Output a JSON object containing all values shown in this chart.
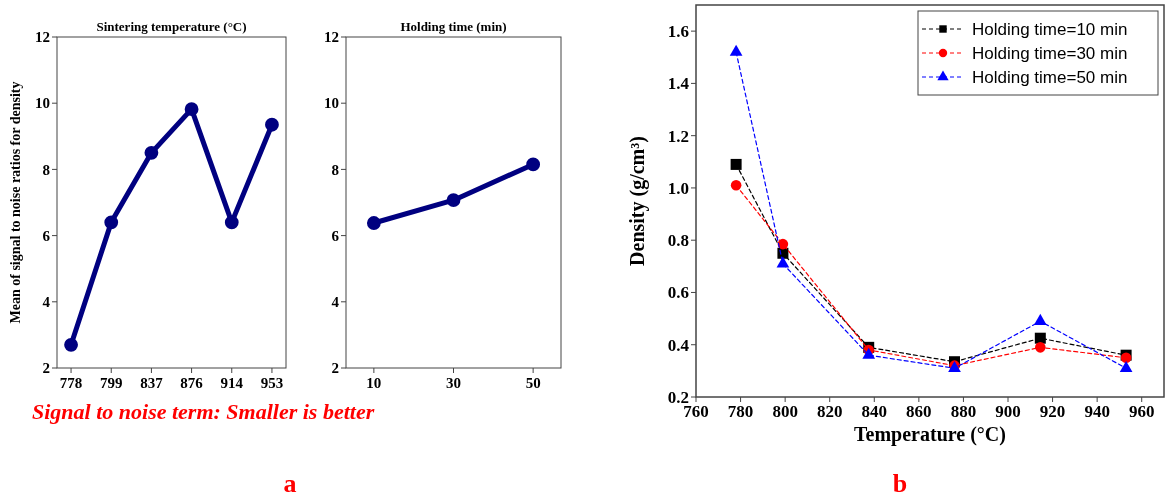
{
  "chart_data": [
    {
      "type": "line",
      "title": "Sintering temperature (°C)",
      "ylabel": "Mean of signal to noise ratios for density",
      "categories": [
        "778",
        "799",
        "837",
        "876",
        "914",
        "953"
      ],
      "series": [
        {
          "color": "#000080",
          "values": [
            2.7,
            6.4,
            8.5,
            9.82,
            6.4,
            9.35
          ]
        }
      ],
      "marker": "circle",
      "ylim": [
        2,
        12
      ],
      "yticks": [
        2,
        4,
        6,
        8,
        10,
        12
      ],
      "annotations": [
        "Signal to noise term: Smaller is better",
        "a"
      ]
    },
    {
      "type": "line",
      "title": "Holding time (min)",
      "categories": [
        "10",
        "30",
        "50"
      ],
      "series": [
        {
          "color": "#000080",
          "values": [
            6.38,
            7.07,
            8.15
          ]
        }
      ],
      "marker": "circle",
      "ylim": [
        2,
        12
      ],
      "yticks": [
        2,
        4,
        6,
        8,
        10,
        12
      ]
    },
    {
      "type": "line",
      "xlabel": "Temperature (°C)",
      "ylabel": "Density (g/cm³)",
      "x": [
        778,
        799,
        837.5,
        876,
        914.5,
        953
      ],
      "series": [
        {
          "name": "Holding time=10 min",
          "color": "#000000",
          "marker": "square",
          "values": [
            1.09,
            0.75,
            0.39,
            0.335,
            0.425,
            0.36
          ]
        },
        {
          "name": "Holding time=30 min",
          "color": "#ff0000",
          "marker": "circle",
          "values": [
            1.01,
            0.785,
            0.38,
            0.32,
            0.39,
            0.35
          ]
        },
        {
          "name": "Holding time=50 min",
          "color": "#0000ff",
          "marker": "triangle",
          "values": [
            1.52,
            0.71,
            0.36,
            0.31,
            0.49,
            0.31
          ]
        }
      ],
      "line_style": "dashed",
      "legend": "top right",
      "xlim": [
        760,
        970
      ],
      "xticks": [
        760,
        780,
        800,
        820,
        840,
        860,
        880,
        900,
        920,
        940,
        960
      ],
      "ylim": [
        0.2,
        1.7
      ],
      "yticks": [
        0.2,
        0.4,
        0.6,
        0.8,
        {
          "value": 1,
          "label": "1.0"
        },
        1.2,
        1.4,
        1.6
      ],
      "annotations": [
        "b"
      ]
    }
  ]
}
